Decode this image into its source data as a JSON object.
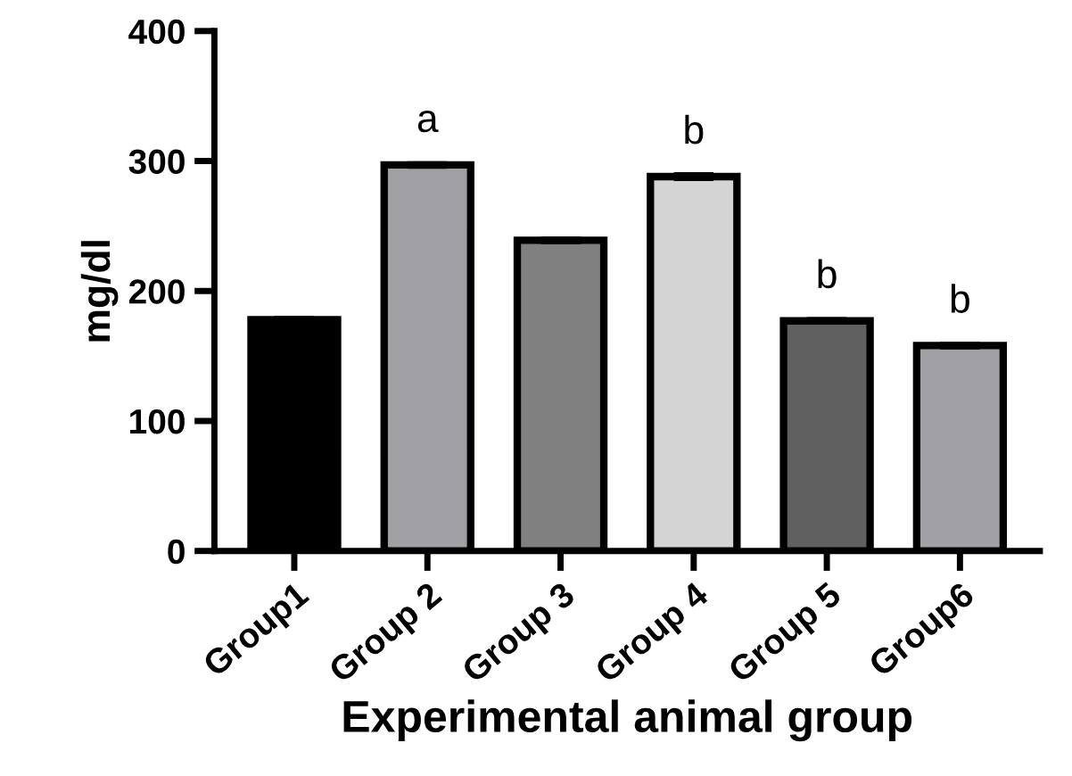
{
  "chart_data": {
    "type": "bar",
    "xlabel": "Experimental animal group",
    "ylabel": "mg/dl",
    "categories": [
      "Group1",
      "Group 2",
      "Group 3",
      "Group 4",
      "Group 5",
      "Group6"
    ],
    "values": [
      178,
      297,
      239,
      288,
      177,
      158
    ],
    "errors": [
      1.5,
      1.5,
      1.5,
      2,
      1.5,
      1.5
    ],
    "colors": [
      "#000000",
      "#a0a0a4",
      "#808080",
      "#d4d4d4",
      "#606060",
      "#a0a0a4"
    ],
    "ylim": [
      0,
      400
    ],
    "yticks": [
      0,
      100,
      200,
      300,
      400
    ],
    "grid": false,
    "annotations": [
      {
        "text": "a",
        "x": "Group 2",
        "y": 297
      },
      {
        "text": "b",
        "x": "Group 4",
        "y": 288
      },
      {
        "text": "b",
        "x": "Group 5",
        "y": 177
      },
      {
        "text": "b",
        "x": "Group6",
        "y": 158
      }
    ]
  }
}
